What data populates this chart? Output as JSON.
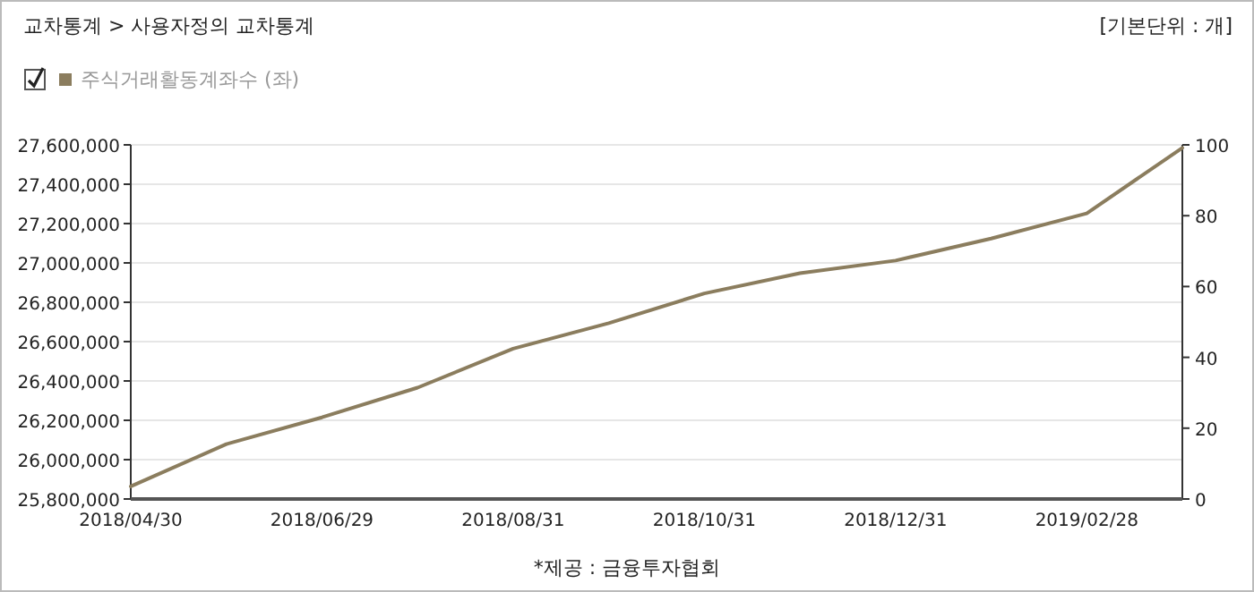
{
  "chart_data": {
    "type": "line",
    "title": "교차통계 > 사용자정의 교차통계",
    "subtitle": "[기본단위 : 개]",
    "categories": [
      "2018/04/30",
      null,
      "2018/06/29",
      null,
      "2018/08/31",
      null,
      "2018/10/31",
      null,
      "2018/12/31",
      null,
      "2019/02/28",
      null
    ],
    "series": [
      {
        "name": "주식거래활동계좌수 (좌)",
        "color": "#8b7d5e",
        "values": [
          25864000,
          26079000,
          26215000,
          26366000,
          26564000,
          26694000,
          26845000,
          26948000,
          27012000,
          27124000,
          27252000,
          27585000
        ]
      }
    ],
    "ylim": [
      25800000,
      27600000
    ],
    "yticks": [
      {
        "value": 25800000,
        "label": "25,800,000"
      },
      {
        "value": 26000000,
        "label": "26,000,000"
      },
      {
        "value": 26200000,
        "label": "26,200,000"
      },
      {
        "value": 26400000,
        "label": "26,400,000"
      },
      {
        "value": 26600000,
        "label": "26,600,000"
      },
      {
        "value": 26800000,
        "label": "26,800,000"
      },
      {
        "value": 27000000,
        "label": "27,000,000"
      },
      {
        "value": 27200000,
        "label": "27,200,000"
      },
      {
        "value": 27400000,
        "label": "27,400,000"
      },
      {
        "value": 27600000,
        "label": "27,600,000"
      }
    ],
    "y2lim": [
      0,
      100
    ],
    "y2ticks": [
      0,
      20,
      40,
      60,
      80,
      100
    ],
    "grid": "y",
    "legend": "top left",
    "marker": "none",
    "line_style": "solid",
    "annotations": [
      "*제공 : 금융투자협회"
    ]
  }
}
